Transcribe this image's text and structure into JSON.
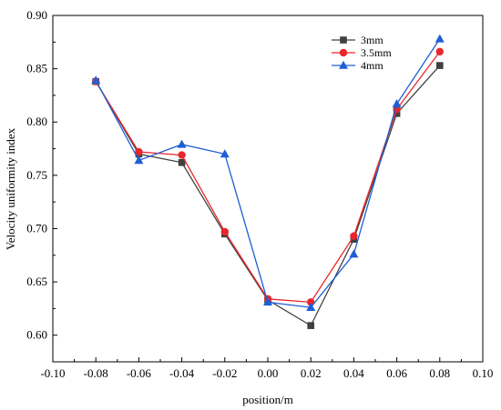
{
  "chart_data": {
    "type": "line",
    "xlabel": "position/m",
    "ylabel": "Velocity uniformity index",
    "xlim": [
      -0.1,
      0.1
    ],
    "ylim": [
      0.575,
      0.9
    ],
    "xticks": [
      -0.1,
      -0.08,
      -0.06,
      -0.04,
      -0.02,
      0.0,
      0.02,
      0.04,
      0.06,
      0.08,
      0.1
    ],
    "xtick_labels": [
      "-0.10",
      "-0.08",
      "-0.06",
      "-0.04",
      "-0.02",
      "0.00",
      "0.02",
      "0.04",
      "0.06",
      "0.08",
      "0.10"
    ],
    "yticks": [
      0.6,
      0.65,
      0.7,
      0.75,
      0.8,
      0.85,
      0.9
    ],
    "ytick_labels": [
      "0.60",
      "0.65",
      "0.70",
      "0.75",
      "0.80",
      "0.85",
      "0.90"
    ],
    "grid": false,
    "legend_position": "top-right",
    "x": [
      -0.08,
      -0.06,
      -0.04,
      -0.02,
      0.0,
      0.02,
      0.04,
      0.06,
      0.08
    ],
    "series": [
      {
        "name": "3mm",
        "color": "#404040",
        "marker": "square",
        "values": [
          0.838,
          0.77,
          0.762,
          0.695,
          0.633,
          0.609,
          0.69,
          0.808,
          0.853
        ]
      },
      {
        "name": "3.5mm",
        "color": "#e8262b",
        "marker": "circle",
        "values": [
          0.838,
          0.772,
          0.769,
          0.697,
          0.634,
          0.631,
          0.693,
          0.812,
          0.866
        ]
      },
      {
        "name": "4mm",
        "color": "#1f5fd4",
        "marker": "triangle",
        "values": [
          0.839,
          0.764,
          0.779,
          0.77,
          0.631,
          0.626,
          0.676,
          0.817,
          0.878
        ]
      }
    ]
  }
}
